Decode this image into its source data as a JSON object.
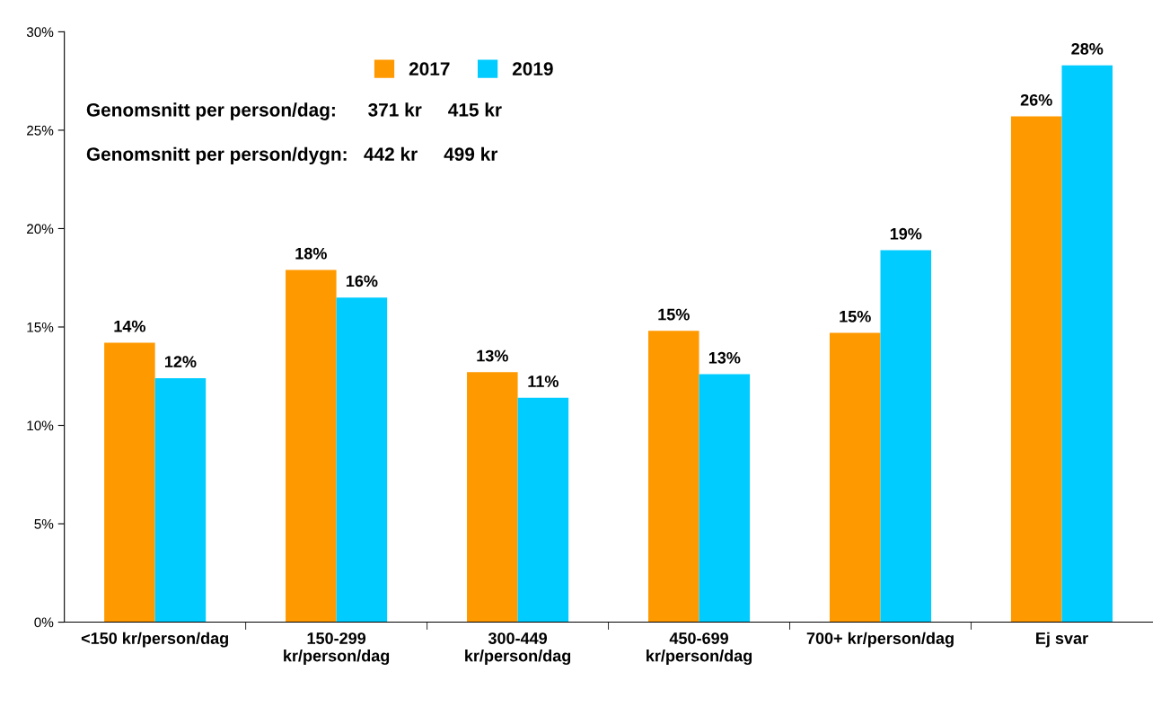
{
  "chart_data": {
    "type": "bar",
    "categories": [
      "<150 kr/person/dag",
      "150-299 kr/person/dag",
      "300-449 kr/person/dag",
      "450-699 kr/person/dag",
      "700+ kr/person/dag",
      "Ej svar"
    ],
    "series": [
      {
        "name": "2017",
        "color": "#ff9900",
        "values": [
          14.2,
          17.9,
          12.7,
          14.8,
          14.7,
          25.7
        ],
        "value_labels": [
          "14%",
          "18%",
          "13%",
          "15%",
          "15%",
          "26%"
        ]
      },
      {
        "name": "2019",
        "color": "#00ccff",
        "values": [
          12.4,
          16.5,
          11.4,
          12.6,
          18.9,
          28.3
        ],
        "value_labels": [
          "12%",
          "16%",
          "11%",
          "13%",
          "19%",
          "28%"
        ]
      }
    ],
    "ylim": [
      0,
      30
    ],
    "yticks": [
      {
        "value": 0,
        "label": "0%"
      },
      {
        "value": 5,
        "label": "5%"
      },
      {
        "value": 10,
        "label": "10%"
      },
      {
        "value": 15,
        "label": "15%"
      },
      {
        "value": 20,
        "label": "20%"
      },
      {
        "value": 25,
        "label": "25%"
      },
      {
        "value": 30,
        "label": "30%"
      }
    ],
    "annotations": [
      "Genomsnitt per person/dag:      371 kr     415 kr",
      "Genomsnitt per person/dygn:   442 kr     499 kr"
    ],
    "legend": "top left",
    "grid": false
  }
}
